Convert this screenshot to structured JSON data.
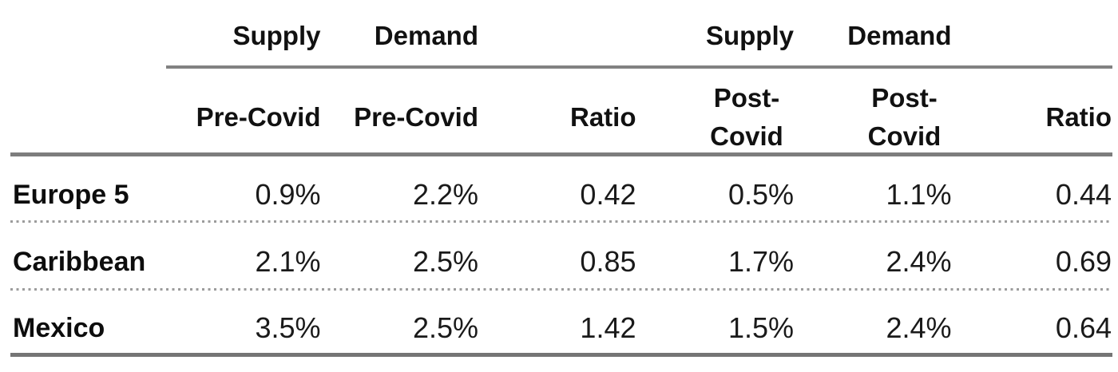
{
  "table": {
    "group_headers": {
      "supply_pre": "Supply",
      "demand_pre": "Demand",
      "supply_post": "Supply",
      "demand_post": "Demand"
    },
    "sub_headers": {
      "supply_pre": "Pre-Covid",
      "demand_pre": "Pre-Covid",
      "ratio_pre": "Ratio",
      "supply_post": "Post-Covid",
      "demand_post": "Post-Covid",
      "ratio_post": "Ratio"
    },
    "rows": [
      {
        "label": "Europe 5",
        "values": [
          "0.9%",
          "2.2%",
          "0.42",
          "0.5%",
          "1.1%",
          "0.44"
        ]
      },
      {
        "label": "Caribbean",
        "values": [
          "2.1%",
          "2.5%",
          "0.85",
          "1.7%",
          "2.4%",
          "0.69"
        ]
      },
      {
        "label": "Mexico",
        "values": [
          "3.5%",
          "2.5%",
          "1.42",
          "1.5%",
          "2.4%",
          "0.64"
        ]
      }
    ],
    "colors": {
      "text": "#111111",
      "solid_rule": "#7d7d7d",
      "group_underline": "#828282",
      "dotted_rule": "#9c9c9c"
    }
  }
}
